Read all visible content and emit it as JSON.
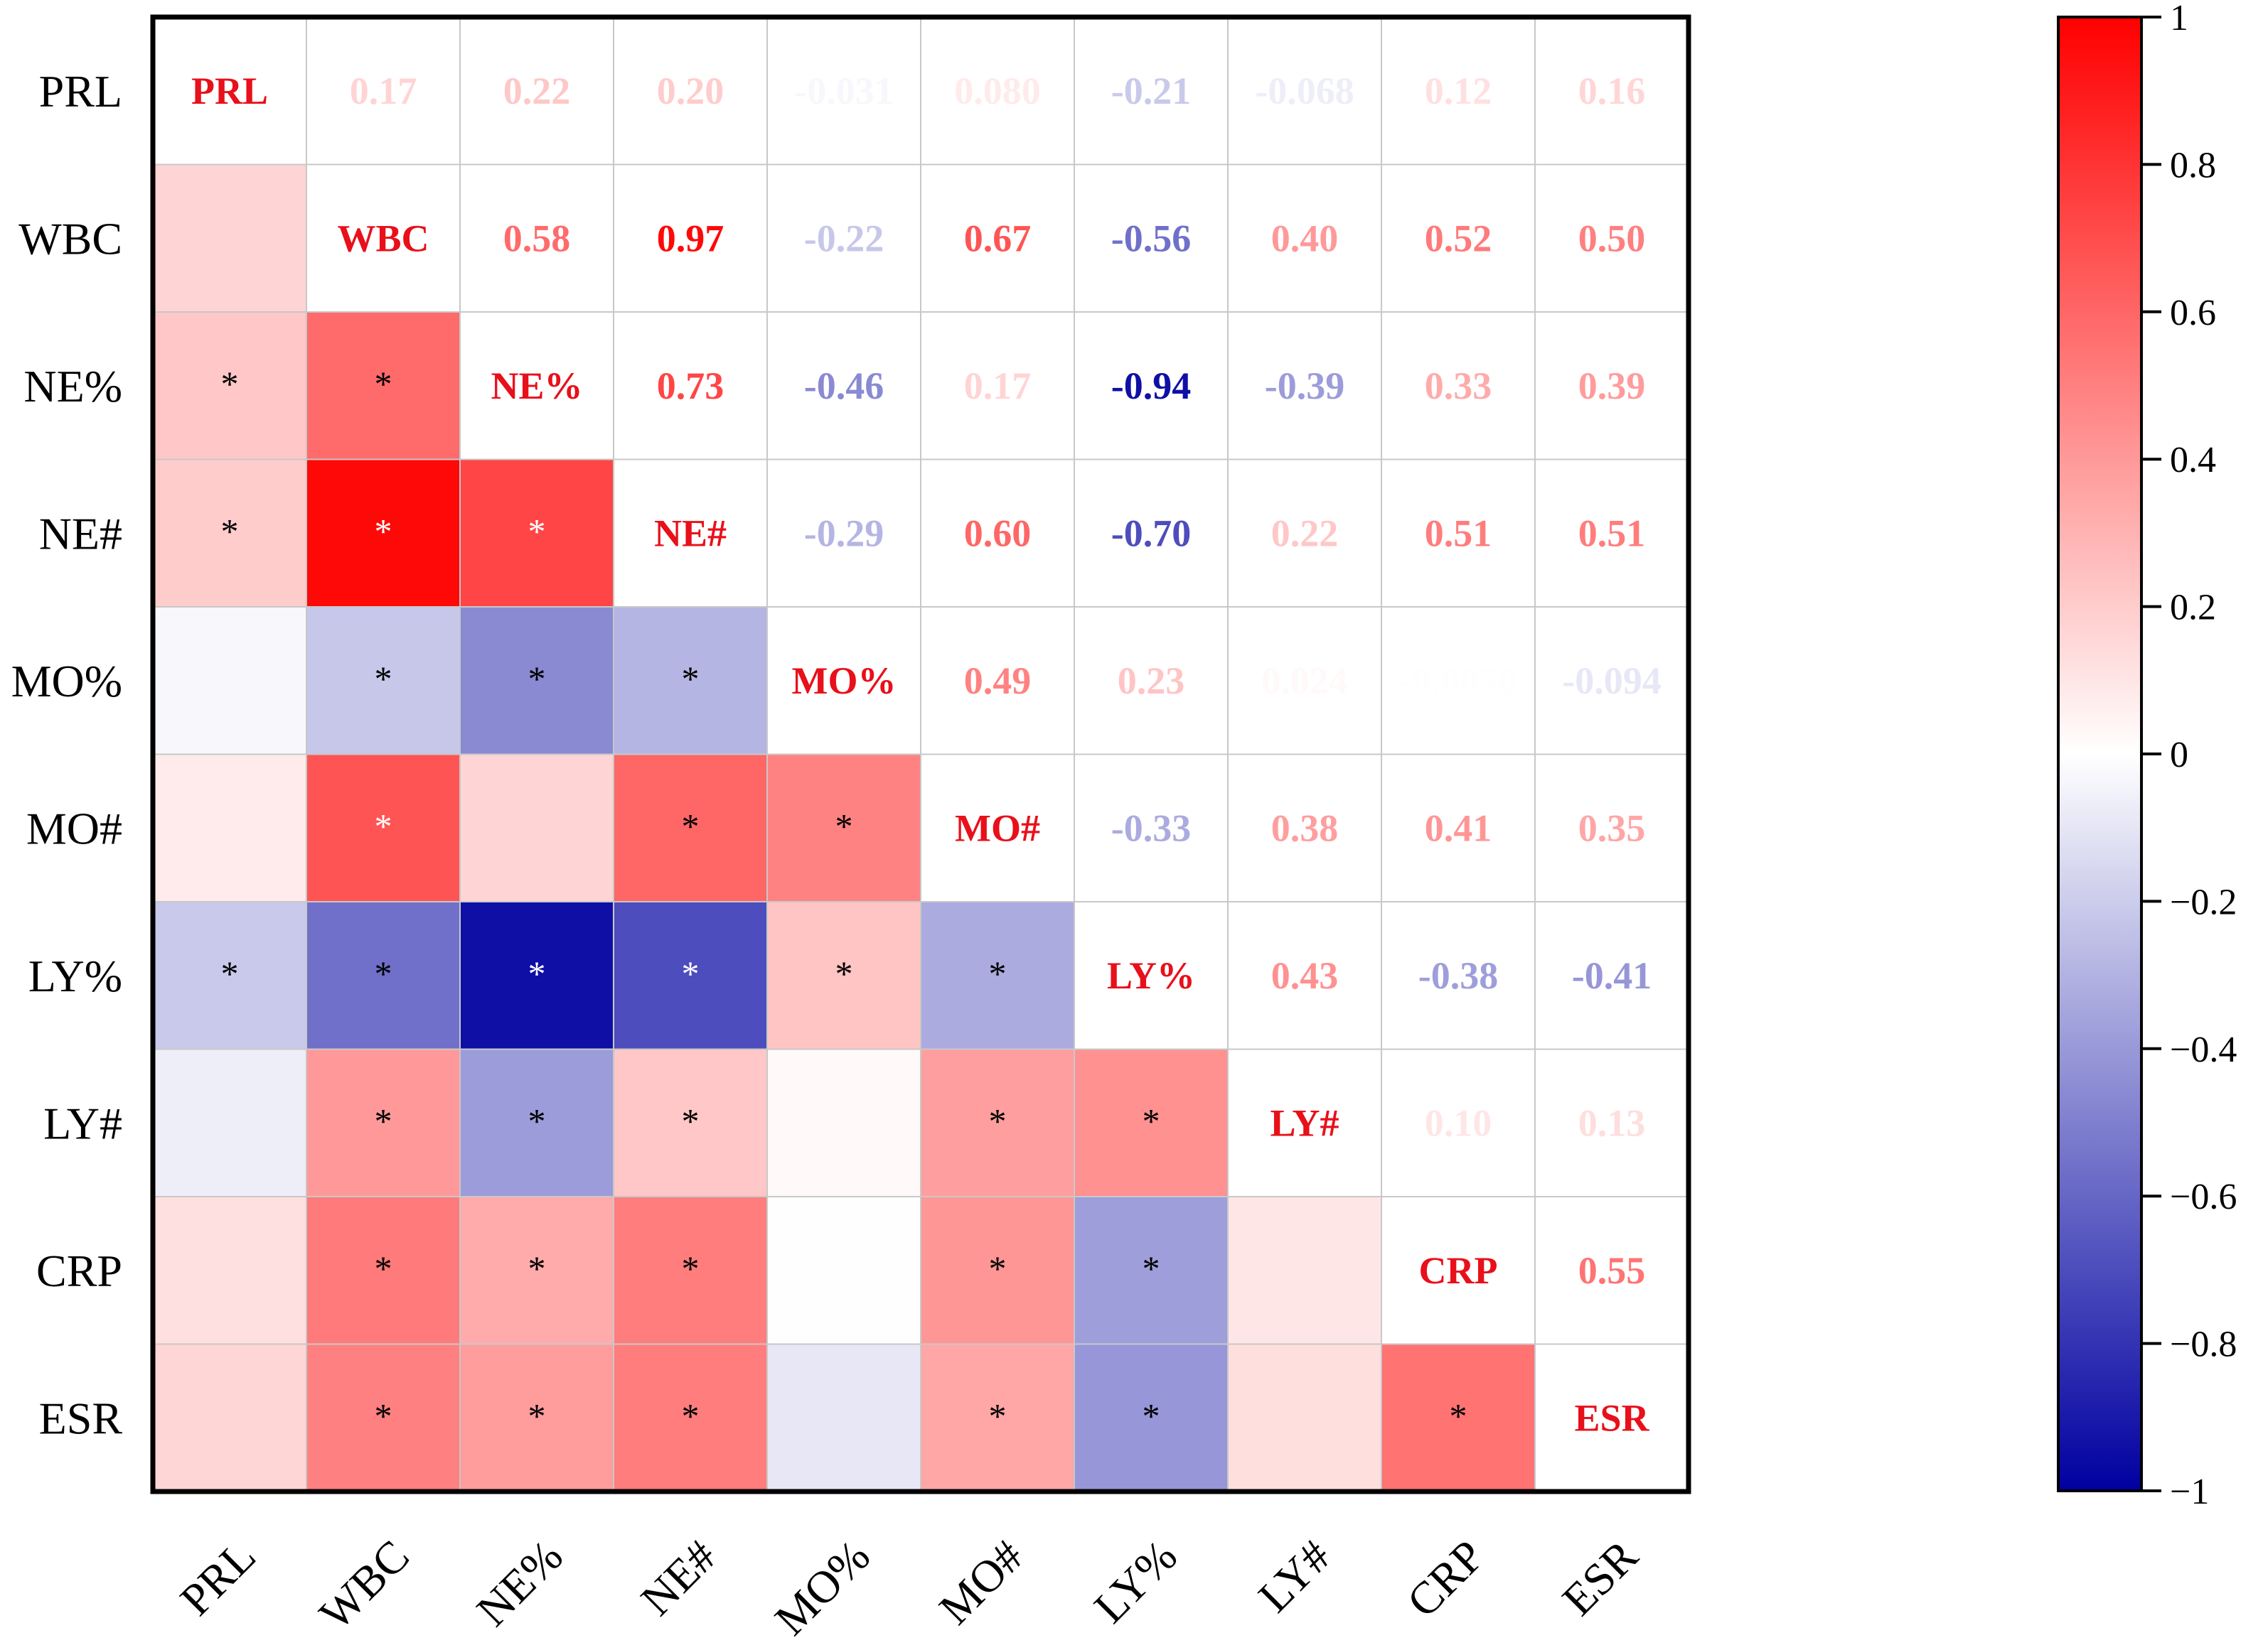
{
  "chart_data": {
    "type": "heatmap",
    "title": "",
    "variables": [
      "PRL",
      "WBC",
      "NE%",
      "NE#",
      "MO%",
      "MO#",
      "LY%",
      "LY#",
      "CRP",
      "ESR"
    ],
    "upper_labels": [
      [
        "",
        "0.17",
        "0.22",
        "0.20",
        "-0.031",
        "0.080",
        "-0.21",
        "-0.068",
        "0.12",
        "0.16"
      ],
      [
        "",
        "",
        "0.58",
        "0.97",
        "-0.22",
        "0.67",
        "-0.56",
        "0.40",
        "0.52",
        "0.50"
      ],
      [
        "",
        "",
        "",
        "0.73",
        "-0.46",
        "0.17",
        "-0.94",
        "-0.39",
        "0.33",
        "0.39"
      ],
      [
        "",
        "",
        "",
        "",
        "-0.29",
        "0.60",
        "-0.70",
        "0.22",
        "0.51",
        "0.51"
      ],
      [
        "",
        "",
        "",
        "",
        "",
        "0.49",
        "0.23",
        "0.024",
        "-0.0050",
        "-0.094"
      ],
      [
        "",
        "",
        "",
        "",
        "",
        "",
        "-0.33",
        "0.38",
        "0.41",
        "0.35"
      ],
      [
        "",
        "",
        "",
        "",
        "",
        "",
        "",
        "0.43",
        "-0.38",
        "-0.41"
      ],
      [
        "",
        "",
        "",
        "",
        "",
        "",
        "",
        "",
        "0.10",
        "0.13"
      ],
      [
        "",
        "",
        "",
        "",
        "",
        "",
        "",
        "",
        "",
        "0.55"
      ],
      [
        "",
        "",
        "",
        "",
        "",
        "",
        "",
        "",
        "",
        ""
      ]
    ],
    "significance": [
      [
        0,
        0,
        0,
        0,
        0,
        0,
        0,
        0,
        0,
        0
      ],
      [
        0,
        0,
        0,
        0,
        0,
        0,
        0,
        0,
        0,
        0
      ],
      [
        1,
        1,
        0,
        0,
        0,
        0,
        0,
        0,
        0,
        0
      ],
      [
        1,
        1,
        1,
        0,
        0,
        0,
        0,
        0,
        0,
        0
      ],
      [
        0,
        1,
        1,
        1,
        0,
        0,
        0,
        0,
        0,
        0
      ],
      [
        0,
        1,
        0,
        1,
        1,
        0,
        0,
        0,
        0,
        0
      ],
      [
        1,
        1,
        1,
        1,
        1,
        1,
        0,
        0,
        0,
        0
      ],
      [
        0,
        1,
        1,
        1,
        0,
        1,
        1,
        0,
        0,
        0
      ],
      [
        0,
        1,
        1,
        1,
        0,
        1,
        1,
        0,
        0,
        0
      ],
      [
        0,
        1,
        1,
        1,
        0,
        1,
        1,
        0,
        1,
        0
      ]
    ],
    "star_symbol": "*",
    "colorbar": {
      "min": -1,
      "max": 1,
      "ticks": [
        "1",
        "0.8",
        "0.6",
        "0.4",
        "0.2",
        "0",
        "-0.2",
        "-0.4",
        "-0.6",
        "-0.8",
        "-1"
      ],
      "low_color": "#0000a0",
      "mid_color": "#ffffff",
      "high_color": "#ff0000"
    },
    "diagonal_label_color": "#e8101a",
    "grid": true,
    "legend_position": "right"
  }
}
